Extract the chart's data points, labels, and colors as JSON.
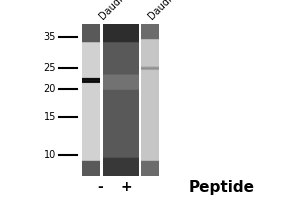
{
  "bg_color": "#ffffff",
  "panel_bg": "#ffffff",
  "mw_labels": [
    "35",
    "25",
    "20",
    "15",
    "10"
  ],
  "mw_values": [
    35,
    25,
    20,
    15,
    10
  ],
  "lane_labels": [
    "Daudi",
    "Daudi"
  ],
  "peptide_labels": [
    "-",
    "+"
  ],
  "peptide_text": "Peptide",
  "ymin": 8,
  "ymax": 40,
  "fig_width": 3.0,
  "fig_height": 2.0,
  "dpi": 100
}
